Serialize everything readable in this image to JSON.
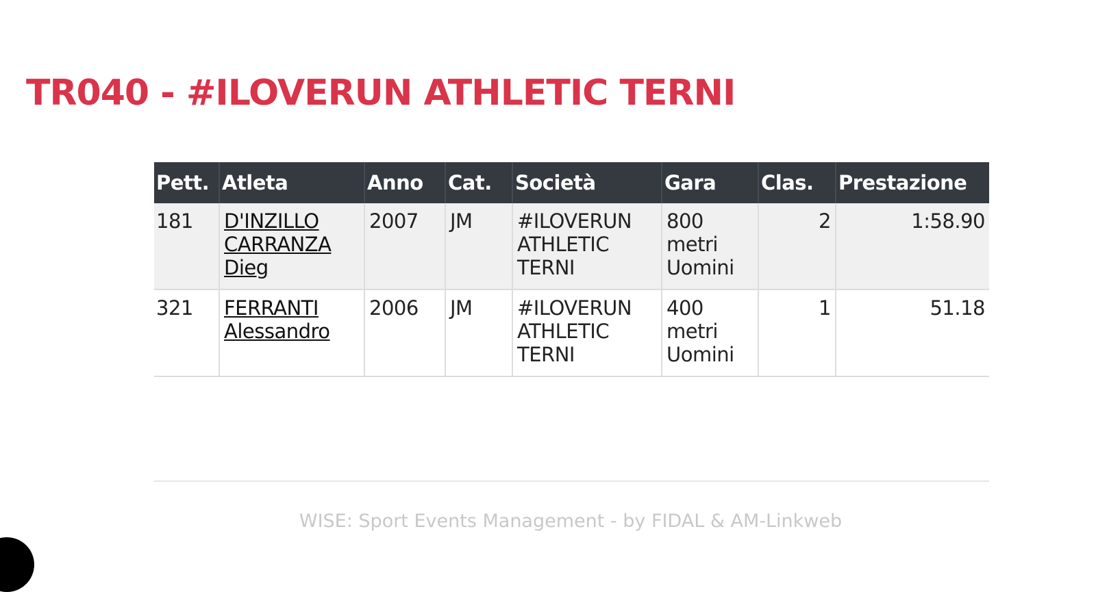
{
  "title": "TR040 - #ILOVERUN ATHLETIC TERNI",
  "table": {
    "headers": [
      "Pett.",
      "Atleta",
      "Anno",
      "Cat.",
      "Società",
      "Gara",
      "Clas.",
      "Prestazione"
    ],
    "rows": [
      {
        "pett": "181",
        "atleta": "D'INZILLO CARRANZA Dieg",
        "anno": "2007",
        "cat": "JM",
        "societa": "#ILOVERUN ATHLETIC TERNI",
        "gara": "800 metri Uomini",
        "clas": "2",
        "prestazione": "1:58.90"
      },
      {
        "pett": "321",
        "atleta": "FERRANTI Alessandro",
        "anno": "2006",
        "cat": "JM",
        "societa": "#ILOVERUN ATHLETIC TERNI",
        "gara": "400 metri Uomini",
        "clas": "1",
        "prestazione": "51.18"
      }
    ]
  },
  "footer": "WISE: Sport Events Management - by FIDAL & AM-Linkweb",
  "colors": {
    "title": "#d9344a",
    "header_bg": "#343a40"
  }
}
